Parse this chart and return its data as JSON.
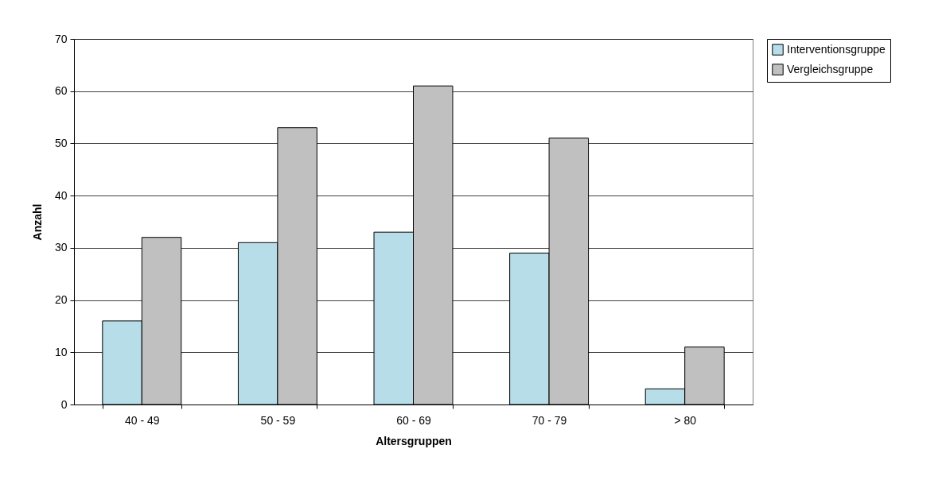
{
  "chart_data": {
    "type": "bar",
    "xlabel": "Altersgruppen",
    "ylabel": "Anzahl",
    "categories": [
      "40 - 49",
      "50 - 59",
      "60 - 69",
      "70 - 79",
      "> 80"
    ],
    "series": [
      {
        "name": "Interventionsgruppe",
        "color": "#b7dde8",
        "values": [
          16,
          31,
          33,
          29,
          3
        ]
      },
      {
        "name": "Vergleichsgruppe",
        "color": "#c0c0c0",
        "values": [
          32,
          53,
          61,
          51,
          11
        ]
      }
    ],
    "ylim": [
      0,
      70
    ],
    "yticks": [
      0,
      10,
      20,
      30,
      40,
      50,
      60,
      70
    ],
    "grid": "y",
    "legend": "right"
  }
}
